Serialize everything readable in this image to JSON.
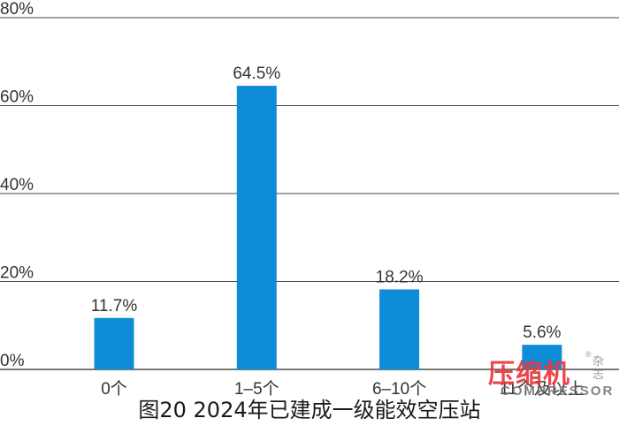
{
  "chart_data": {
    "type": "bar",
    "categories": [
      "0个",
      "1–5个",
      "6–10个",
      "11个及以上"
    ],
    "values": [
      11.7,
      64.5,
      18.2,
      5.6
    ],
    "value_labels": [
      "11.7%",
      "64.5%",
      "18.2%",
      "5.6%"
    ],
    "y_ticks": [
      0,
      20,
      40,
      60,
      80
    ],
    "y_tick_labels": [
      "0%",
      "20%",
      "40%",
      "60%",
      "80%"
    ],
    "ylim": [
      0,
      80
    ],
    "grid": true,
    "bar_color": "#0e8cd7",
    "title": "图20 2024年已建成一级能效空压站",
    "xlabel": "",
    "ylabel": ""
  },
  "watermark": {
    "main": "压缩机",
    "side": "杂志",
    "reg": "®",
    "sub": "COMPRESSOR"
  },
  "colors": {
    "grid": "#4a4a4a",
    "text": "#333333",
    "watermark_red": "#e8383c"
  }
}
